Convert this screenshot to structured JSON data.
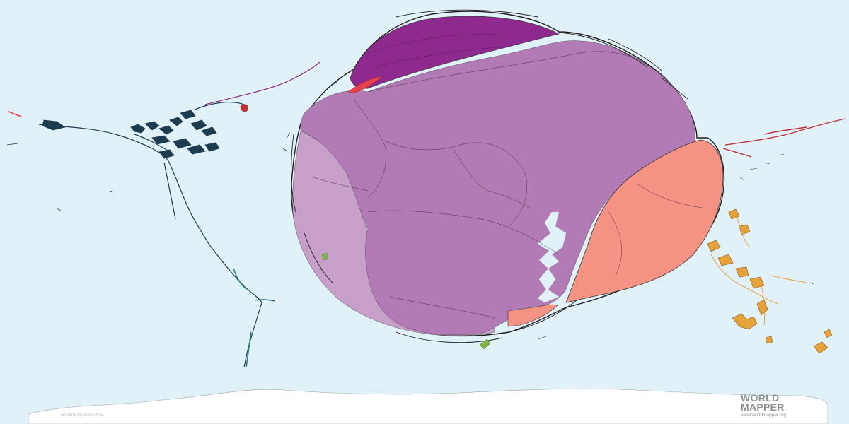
{
  "map": {
    "type": "cartogram",
    "background_color": "#e1f1f8",
    "antarctica_note": "No data for Antarctica",
    "logo": {
      "line1": "WORLD",
      "line2": "MAPPER",
      "url": "www.worldmapper.org"
    },
    "region_colors": {
      "large_blob_main": "#b37bb5",
      "large_blob_light": "#c79fc9",
      "top_cap": "#8e2a8e",
      "east_lobe": "#f49283",
      "red_accent": "#e6404a",
      "americas_line": "#1d3c50",
      "oceania_islands": "#e5a23a",
      "east_asia_lines": "#c0313a",
      "antarctica": "#ffffff"
    }
  }
}
